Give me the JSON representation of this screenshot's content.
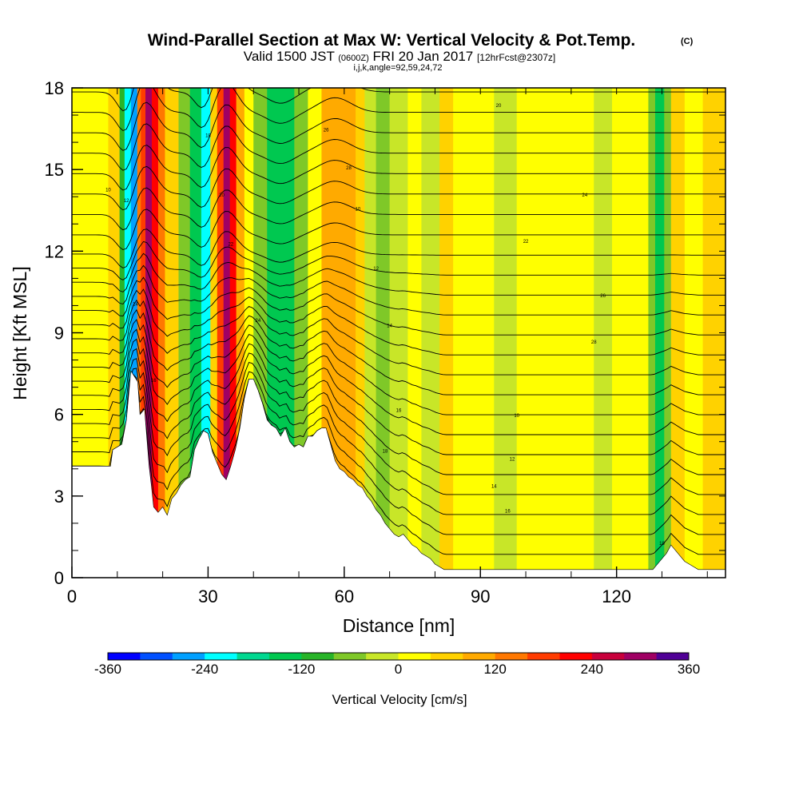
{
  "chart_data": {
    "type": "heatmap",
    "title": "Wind-Parallel Section at Max W: Vertical Velocity & Pot.Temp.",
    "title_mark": "(C)",
    "subtitle_parts": [
      "Valid 1500 JST",
      "(0600Z)",
      "FRI 20 Jan 2017",
      "[12hrFcst@2307z]"
    ],
    "subtitle2": "i,j,k,angle=92,59,24,72",
    "xlabel": "Distance [nm]",
    "ylabel": "Height [Kft MSL]",
    "xlim": [
      0,
      144
    ],
    "ylim": [
      0,
      18
    ],
    "xticks": [
      "0",
      "30",
      "60",
      "90",
      "120"
    ],
    "xtick_values": [
      0,
      30,
      60,
      90,
      120
    ],
    "yticks": [
      "0",
      "3",
      "6",
      "9",
      "12",
      "15",
      "18"
    ],
    "ytick_values": [
      0,
      3,
      6,
      9,
      12,
      15,
      18
    ],
    "colorbar": {
      "label": "Vertical Velocity [cm/s]",
      "min": -360,
      "max": 360,
      "ticks": [
        "-360",
        "-240",
        "-120",
        "0",
        "120",
        "240",
        "360"
      ],
      "tick_values": [
        -360,
        -240,
        -120,
        0,
        120,
        240,
        360
      ],
      "colors": [
        "#0000ff",
        "#0050ff",
        "#00a0ff",
        "#00ffff",
        "#00d890",
        "#00c850",
        "#28b428",
        "#7fc828",
        "#c8e628",
        "#ffff00",
        "#ffd200",
        "#ffaa00",
        "#ff7800",
        "#ff3c00",
        "#ff0000",
        "#c8003c",
        "#a00064",
        "#500096"
      ]
    },
    "terrain": [
      [
        0,
        4.1
      ],
      [
        8.5,
        4.1
      ],
      [
        9,
        4.7
      ],
      [
        11,
        4.9
      ],
      [
        12,
        5.8
      ],
      [
        13,
        7.6
      ],
      [
        14.5,
        7.2
      ],
      [
        15,
        6
      ],
      [
        16,
        6.2
      ],
      [
        17,
        4.1
      ],
      [
        17.5,
        3.4
      ],
      [
        18,
        2.6
      ],
      [
        19,
        2.4
      ],
      [
        20,
        2.6
      ],
      [
        21,
        2.3
      ],
      [
        22,
        2.9
      ],
      [
        23,
        3.1
      ],
      [
        24,
        3.4
      ],
      [
        25,
        3.6
      ],
      [
        26,
        3.7
      ],
      [
        27,
        4.7
      ],
      [
        28,
        5.1
      ],
      [
        29,
        5.4
      ],
      [
        30,
        5.3
      ],
      [
        31,
        4.6
      ],
      [
        32,
        4.2
      ],
      [
        33,
        3.8
      ],
      [
        34,
        3.6
      ],
      [
        35,
        4.1
      ],
      [
        36,
        4.7
      ],
      [
        37,
        5.5
      ],
      [
        38,
        6.6
      ],
      [
        39,
        7.3
      ],
      [
        40,
        7.3
      ],
      [
        41,
        6.9
      ],
      [
        42,
        6.4
      ],
      [
        43,
        5.8
      ],
      [
        44,
        5.6
      ],
      [
        45,
        5.5
      ],
      [
        46,
        5.2
      ],
      [
        47,
        5.5
      ],
      [
        48,
        5.0
      ],
      [
        49,
        4.8
      ],
      [
        50,
        4.9
      ],
      [
        51,
        4.8
      ],
      [
        52,
        5.2
      ],
      [
        53,
        5.2
      ],
      [
        54,
        5.4
      ],
      [
        55,
        5.5
      ],
      [
        56,
        5.5
      ],
      [
        57,
        4.9
      ],
      [
        58,
        4.3
      ],
      [
        59,
        4.0
      ],
      [
        60,
        3.9
      ],
      [
        61,
        3.7
      ],
      [
        62,
        3.6
      ],
      [
        63,
        3.4
      ],
      [
        64,
        3.3
      ],
      [
        65,
        3.0
      ],
      [
        66,
        2.8
      ],
      [
        67,
        2.5
      ],
      [
        68,
        2.3
      ],
      [
        69,
        2.0
      ],
      [
        70,
        1.8
      ],
      [
        71,
        1.6
      ],
      [
        72,
        1.5
      ],
      [
        73,
        1.6
      ],
      [
        74,
        1.4
      ],
      [
        75,
        1.2
      ],
      [
        76,
        1.1
      ],
      [
        77,
        0.9
      ],
      [
        78,
        0.8
      ],
      [
        79,
        0.7
      ],
      [
        80,
        0.5
      ],
      [
        81,
        0.4
      ],
      [
        82,
        0.3
      ],
      [
        93,
        0.3
      ],
      [
        110,
        0.3
      ],
      [
        126,
        0.3
      ],
      [
        128,
        0.3
      ],
      [
        131,
        0.9
      ],
      [
        132,
        1.2
      ],
      [
        133,
        1.0
      ],
      [
        134,
        0.8
      ],
      [
        135,
        0.6
      ],
      [
        136,
        0.5
      ],
      [
        137,
        0.4
      ],
      [
        138,
        0.3
      ],
      [
        144,
        0.3
      ]
    ],
    "w_columns": [
      {
        "x": [
          0,
          8
        ],
        "w": 30
      },
      {
        "x": [
          8,
          10.5
        ],
        "w": 70
      },
      {
        "x": [
          10.5,
          11.6
        ],
        "w": -120
      },
      {
        "x": [
          11.6,
          13
        ],
        "w": -220
      },
      {
        "x": [
          13,
          14.4
        ],
        "w": -280
      },
      {
        "x": [
          14.4,
          15.2
        ],
        "w": 120
      },
      {
        "x": [
          15.2,
          16.2
        ],
        "w": 190
      },
      {
        "x": [
          16.2,
          17.6
        ],
        "w": 280
      },
      {
        "x": [
          17.6,
          19
        ],
        "w": 230
      },
      {
        "x": [
          19,
          20.5
        ],
        "w": 120
      },
      {
        "x": [
          20.5,
          23.5
        ],
        "w": 40
      },
      {
        "x": [
          23.5,
          26
        ],
        "w": -60
      },
      {
        "x": [
          26,
          28.5
        ],
        "w": -150
      },
      {
        "x": [
          28.5,
          30.5
        ],
        "w": -230
      },
      {
        "x": [
          30.5,
          32
        ],
        "w": 60
      },
      {
        "x": [
          32,
          33.4
        ],
        "w": 180
      },
      {
        "x": [
          33.4,
          34.8
        ],
        "w": 280
      },
      {
        "x": [
          34.8,
          36.2
        ],
        "w": 220
      },
      {
        "x": [
          36.2,
          38
        ],
        "w": 110
      },
      {
        "x": [
          38,
          40
        ],
        "w": 20
      },
      {
        "x": [
          40,
          43
        ],
        "w": -60
      },
      {
        "x": [
          43,
          49
        ],
        "w": -130
      },
      {
        "x": [
          49,
          52
        ],
        "w": -60
      },
      {
        "x": [
          52,
          55
        ],
        "w": 0
      },
      {
        "x": [
          55,
          57.5
        ],
        "w": 80
      },
      {
        "x": [
          57.5,
          60
        ],
        "w": 110
      },
      {
        "x": [
          60,
          62.5
        ],
        "w": 90
      },
      {
        "x": [
          62.5,
          64.5
        ],
        "w": 40
      },
      {
        "x": [
          64.5,
          67
        ],
        "w": -20
      },
      {
        "x": [
          67,
          70
        ],
        "w": -60
      },
      {
        "x": [
          70,
          74
        ],
        "w": -20
      },
      {
        "x": [
          74,
          77
        ],
        "w": 10
      },
      {
        "x": [
          77,
          81
        ],
        "w": -20
      },
      {
        "x": [
          81,
          84
        ],
        "w": 40
      },
      {
        "x": [
          84,
          88
        ],
        "w": 20
      },
      {
        "x": [
          88,
          93
        ],
        "w": 0
      },
      {
        "x": [
          93,
          98
        ],
        "w": -20
      },
      {
        "x": [
          98,
          102
        ],
        "w": 20
      },
      {
        "x": [
          102,
          107
        ],
        "w": 0
      },
      {
        "x": [
          107,
          111
        ],
        "w": 30
      },
      {
        "x": [
          111,
          115
        ],
        "w": 10
      },
      {
        "x": [
          115,
          119
        ],
        "w": -20
      },
      {
        "x": [
          119,
          123
        ],
        "w": 20
      },
      {
        "x": [
          123,
          127
        ],
        "w": 0
      },
      {
        "x": [
          127,
          128.5
        ],
        "w": -80
      },
      {
        "x": [
          128.5,
          130.5
        ],
        "w": -130
      },
      {
        "x": [
          130.5,
          132
        ],
        "w": -60
      },
      {
        "x": [
          132,
          135
        ],
        "w": 40
      },
      {
        "x": [
          135,
          139
        ],
        "w": 30
      },
      {
        "x": [
          139,
          144
        ],
        "w": 40
      }
    ],
    "isentrope_count": 24,
    "contour_labels": [
      "10",
      "12",
      "14",
      "16",
      "18",
      "20",
      "22",
      "24",
      "26",
      "28"
    ],
    "grid": false
  }
}
